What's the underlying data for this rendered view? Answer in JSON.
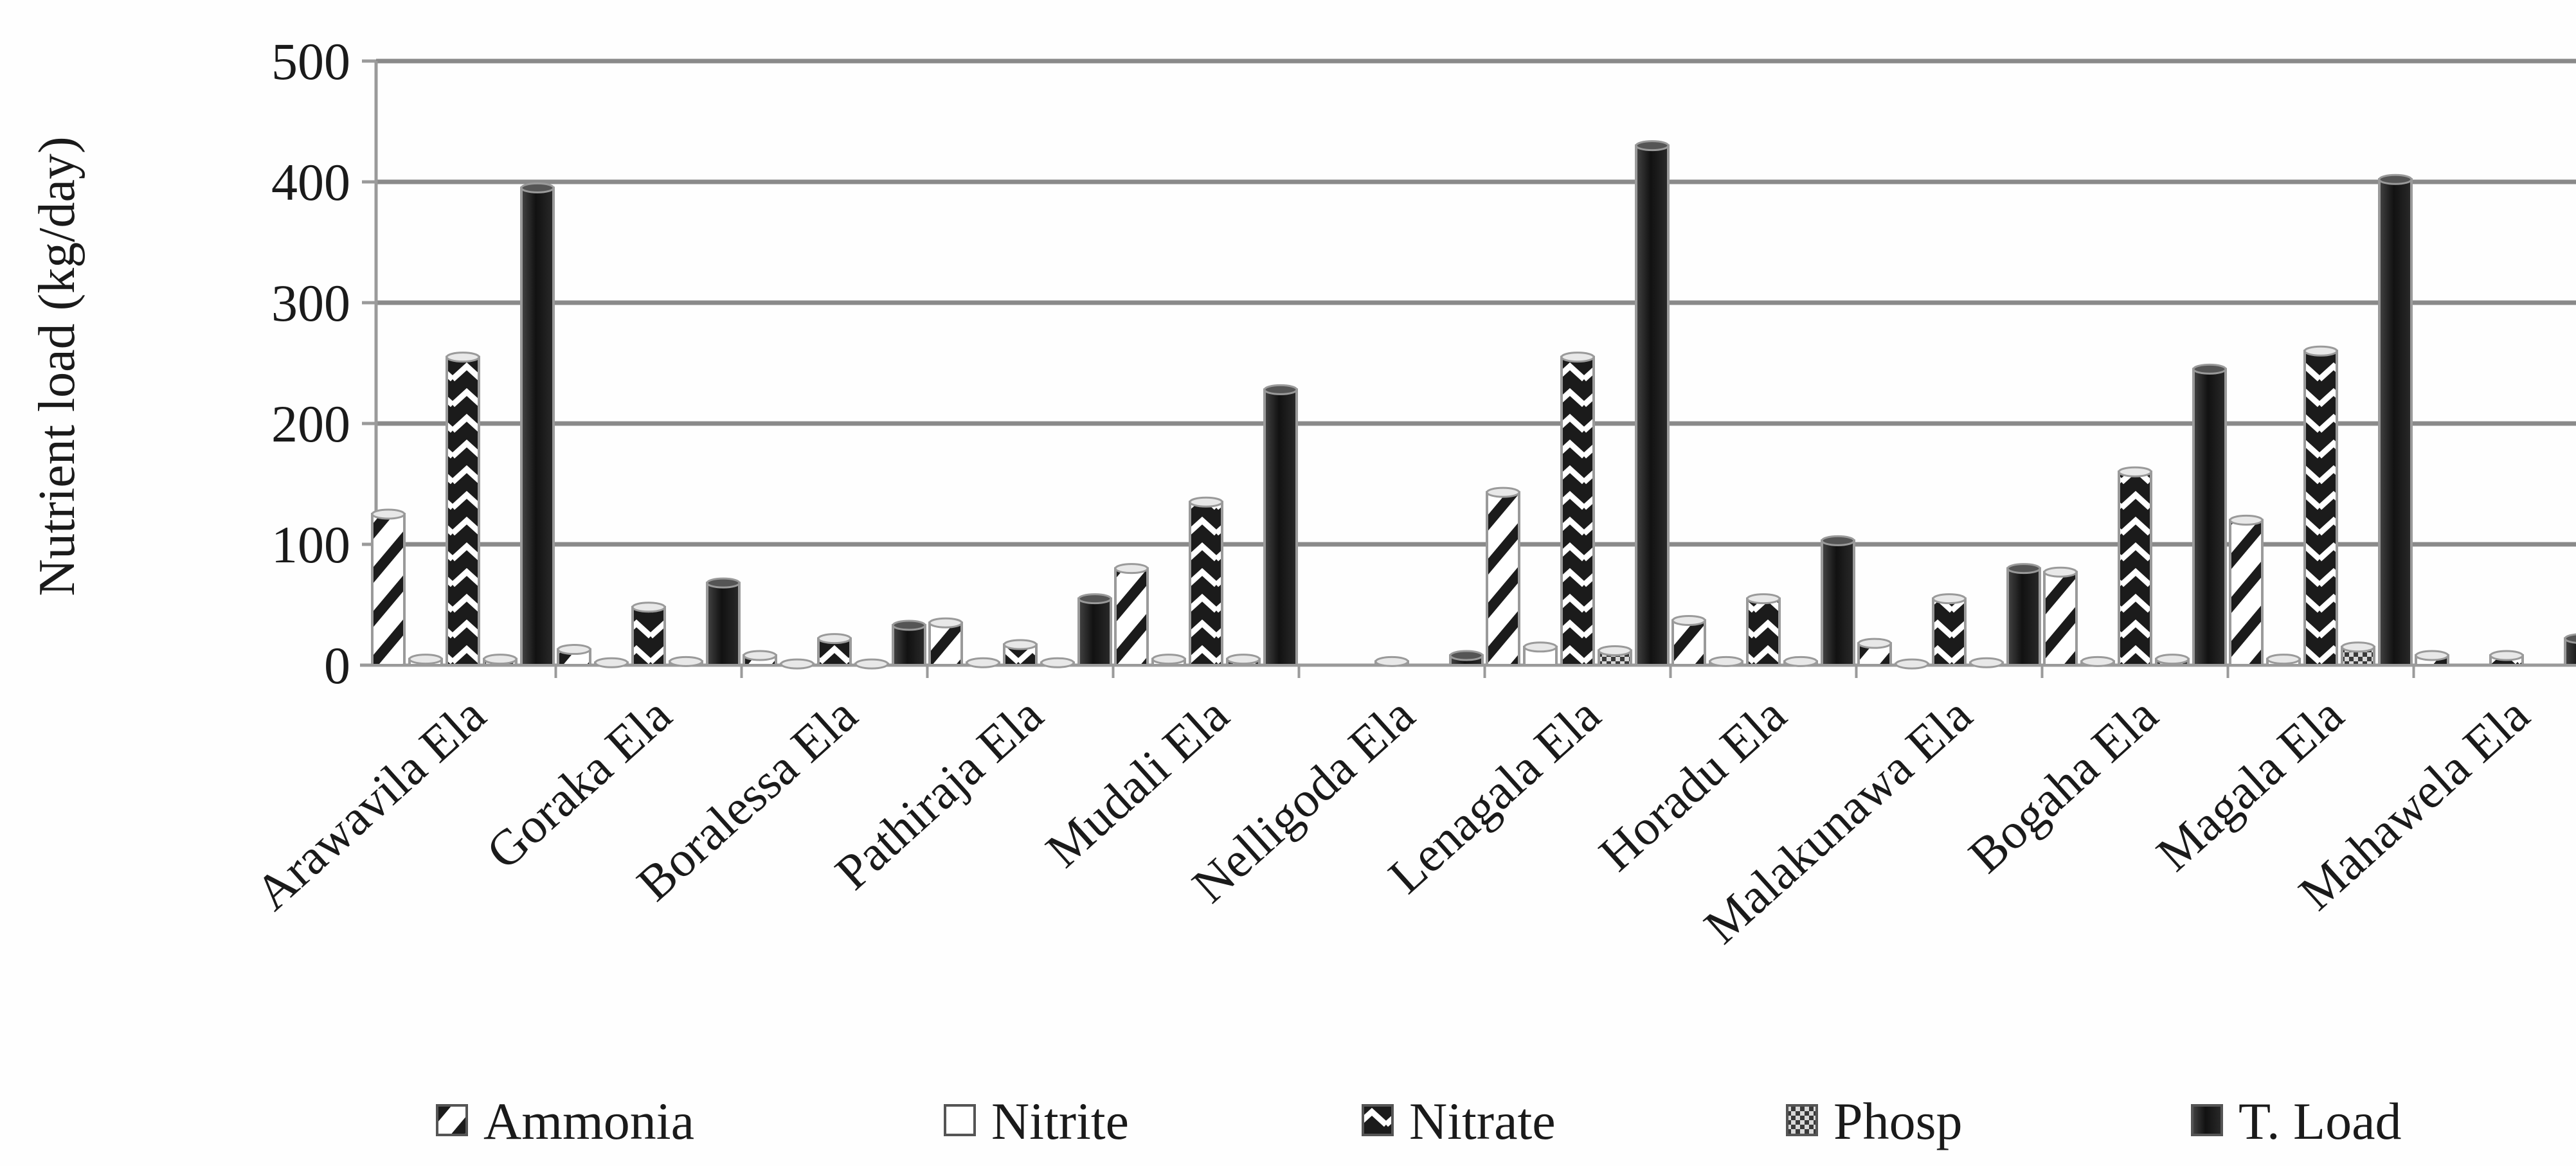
{
  "chart_data": {
    "type": "bar",
    "title": "",
    "xlabel": "",
    "ylabel": "Nutrient load (kg/day)",
    "ylim": [
      0,
      500
    ],
    "yticks": [
      "0",
      "100",
      "200",
      "300",
      "400",
      "500"
    ],
    "grid": true,
    "legend_position": "bottom",
    "categories": [
      "Arawavila Ela",
      "Goraka Ela",
      "Boralessa Ela",
      "Pathiraja Ela",
      "Mudali Ela",
      "Nelligoda Ela",
      "Lenagala Ela",
      "Horadu Ela",
      "Malakunawa Ela",
      "Bogaha Ela",
      "Magala Ela",
      "Mahawela Ela"
    ],
    "series": [
      {
        "name": "Ammonia",
        "values": [
          125,
          13,
          8,
          35,
          80,
          0,
          143,
          37,
          18,
          77,
          120,
          8
        ],
        "pattern": "diagonal-white"
      },
      {
        "name": "Nitrite",
        "values": [
          5,
          2,
          1,
          2,
          5,
          0,
          15,
          3,
          1,
          3,
          5,
          0
        ],
        "pattern": "hollow"
      },
      {
        "name": "Nitrate",
        "values": [
          255,
          48,
          22,
          17,
          135,
          3,
          255,
          55,
          55,
          160,
          260,
          8
        ],
        "pattern": "zigzag-dark"
      },
      {
        "name": "Phosp",
        "values": [
          5,
          3,
          1,
          2,
          5,
          0,
          12,
          3,
          2,
          5,
          15,
          0
        ],
        "pattern": "checker"
      },
      {
        "name": "T. Load",
        "values": [
          395,
          68,
          33,
          55,
          228,
          8,
          430,
          103,
          80,
          245,
          402,
          22
        ],
        "pattern": "solid-dark"
      }
    ],
    "colors": {
      "grid": "#8a8a8a",
      "axis": "#9a9a9a",
      "dark_fill": "#1b1b1b",
      "light_fill": "#ffffff",
      "outline": "#9a9a9a"
    }
  }
}
